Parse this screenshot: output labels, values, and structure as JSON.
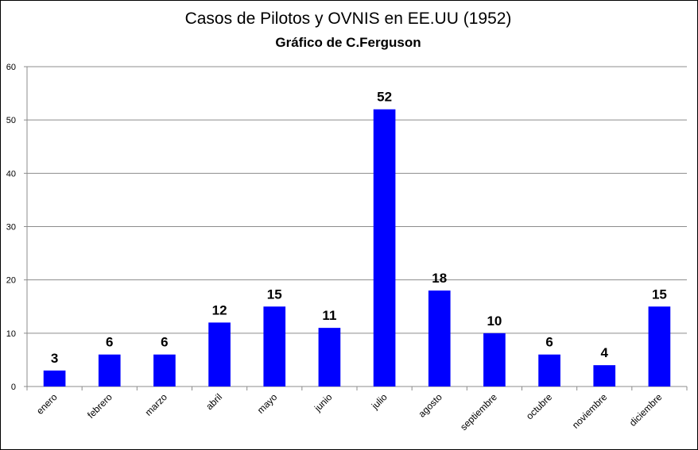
{
  "chart_data": {
    "type": "bar",
    "title": "Casos de Pilotos y OVNIS en EE.UU (1952)",
    "subtitle": "Gráfico de C.Ferguson",
    "xlabel": "",
    "ylabel": "",
    "categories": [
      "enero",
      "febrero",
      "marzo",
      "abril",
      "mayo",
      "junio",
      "julio",
      "agosto",
      "septiembre",
      "octubre",
      "noviembre",
      "diciembre"
    ],
    "values": [
      3,
      6,
      6,
      12,
      15,
      11,
      52,
      18,
      10,
      6,
      4,
      15
    ],
    "ylim": [
      0,
      60
    ],
    "yticks": [
      0,
      10,
      20,
      30,
      40,
      50,
      60
    ],
    "grid": true,
    "legend": "none",
    "data_labels": true,
    "colors": {
      "bar": "#0000FF",
      "grid": "#8C8C8C",
      "axis": "#8C8C8C",
      "text": "#000000"
    }
  }
}
